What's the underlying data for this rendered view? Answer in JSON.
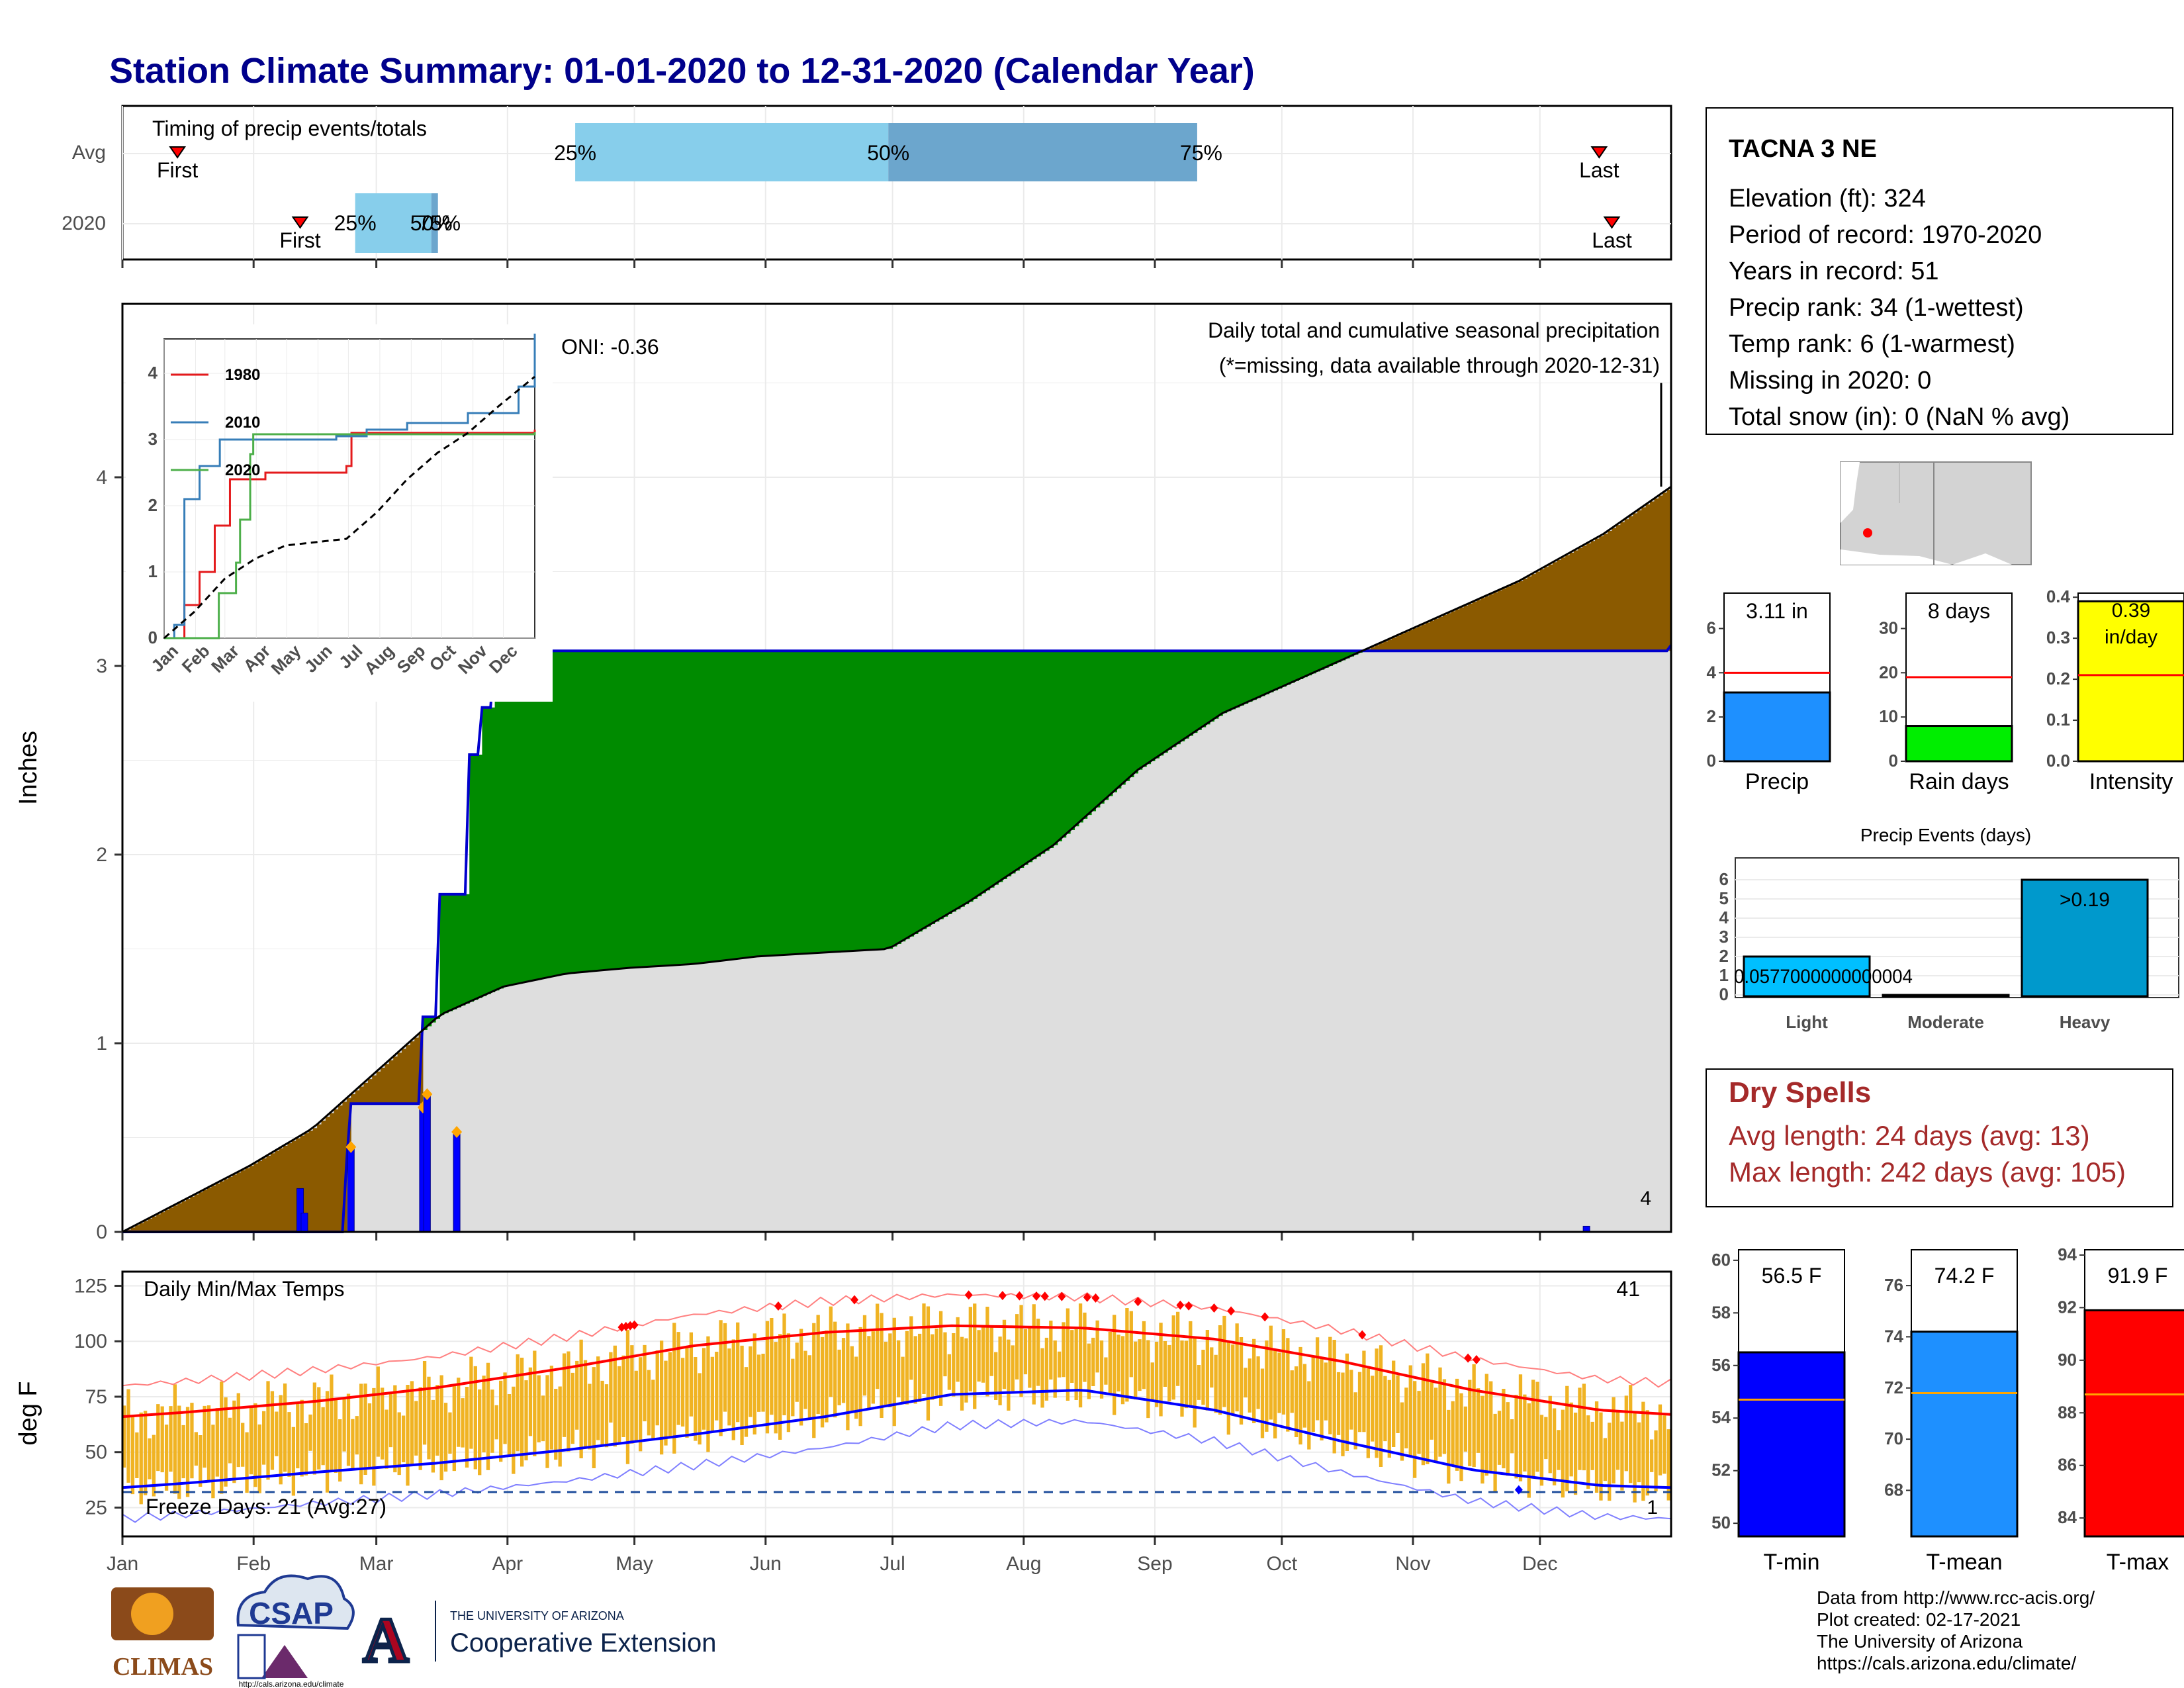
{
  "title": "Station Climate Summary: 01-01-2020 to 12-31-2020 (Calendar Year)",
  "timing": {
    "label": "Timing of precip events/totals",
    "rows": [
      {
        "name": "Avg",
        "first_doy": 13,
        "last_doy": 349,
        "p25": 107,
        "p50": 181,
        "p75": 254,
        "first_label": "First",
        "last_label": "Last",
        "p25_label": "25%",
        "p50_label": "50%",
        "p75_label": "75%"
      },
      {
        "name": "2020",
        "first_doy": 42,
        "last_doy": 352,
        "p25": 55,
        "p50": 73,
        "p75": 74,
        "first_label": "First",
        "last_label": "Last",
        "p25_label": "25%",
        "p50_label": "50%",
        "p75_label": "75%"
      }
    ]
  },
  "precip_panel": {
    "y_axis_label": "Inches",
    "oni": "ONI: -0.36",
    "desc": "Daily total and cumulative seasonal precipitation",
    "missing_note": "(*=missing, data available through 2020-12-31)",
    "count_label": "4",
    "yticks": [
      "0",
      "1",
      "2",
      "3",
      "4"
    ]
  },
  "inset": {
    "legend": [
      "1980",
      "2010",
      "2020"
    ],
    "colors": [
      "#e41a1c",
      "#377eb8",
      "#4daf4a"
    ],
    "yticks": [
      "0",
      "1",
      "2",
      "3",
      "4"
    ],
    "months": [
      "Jan",
      "Feb",
      "Mar",
      "Apr",
      "May",
      "Jun",
      "Jul",
      "Aug",
      "Sep",
      "Oct",
      "Nov",
      "Dec"
    ]
  },
  "temp_panel": {
    "label": "Daily Min/Max Temps",
    "y_axis_label": "deg F",
    "hot_count": "41",
    "freeze_label": "Freeze Days: 21 (Avg:27)",
    "cold_count": "1",
    "yticks": [
      "25",
      "50",
      "75",
      "100",
      "125"
    ]
  },
  "months": [
    "Jan",
    "Feb",
    "Mar",
    "Apr",
    "May",
    "Jun",
    "Jul",
    "Aug",
    "Sep",
    "Oct",
    "Nov",
    "Dec"
  ],
  "station": {
    "name": "TACNA 3 NE",
    "lines": [
      "Elevation (ft): 324",
      "Period of record: 1970-2020",
      "Years in record: 51",
      "Precip rank: 34 (1-wettest)",
      "Temp rank: 6 (1-warmest)",
      "Missing in 2020: 0",
      "Total snow (in): 0 (NaN % avg)"
    ]
  },
  "summary_bars": [
    {
      "label": "Precip",
      "value_label": "3.11 in",
      "value": 3.11,
      "avg": 4.0,
      "ymax": 7.6,
      "yticks": [
        "0",
        "2",
        "4",
        "6"
      ],
      "color": "#1e90ff"
    },
    {
      "label": "Rain days",
      "value_label": "8 days",
      "value": 8,
      "avg": 19,
      "ymax": 38,
      "yticks": [
        "0",
        "10",
        "20",
        "30"
      ],
      "color": "#00ee00"
    },
    {
      "label": "Intensity",
      "value_label": "0.39 in/day",
      "value": 0.39,
      "avg": 0.21,
      "ymax": 0.41,
      "yticks": [
        "0.0",
        "0.1",
        "0.2",
        "0.3",
        "0.4"
      ],
      "color": "#ffff00"
    }
  ],
  "events": {
    "title": "Precip Events (days)",
    "categories": [
      "Light",
      "Moderate",
      "Heavy"
    ],
    "values": [
      2,
      0,
      6
    ],
    "bar_labels": [
      "0.0577000000000004",
      "",
      ">0.19"
    ],
    "yticks": [
      "0",
      "1",
      "2",
      "3",
      "4",
      "5",
      "6"
    ],
    "colors": [
      "#00bfff",
      "#00bfff",
      "#0099cc"
    ]
  },
  "dry_spells": {
    "title": "Dry Spells",
    "avg_line": "Avg length: 24 days (avg: 13)",
    "max_line": "Max length: 242 days (avg: 105)"
  },
  "temp_bars": [
    {
      "label": "T-min",
      "value_label": "56.5 F",
      "value": 56.5,
      "avg": 54.7,
      "ymin": 49.5,
      "ymax": 60.4,
      "yticks": [
        50,
        52,
        54,
        56,
        58,
        60
      ],
      "color": "#0000ff"
    },
    {
      "label": "T-mean",
      "value_label": "74.2 F",
      "value": 74.2,
      "avg": 71.8,
      "ymin": 66.2,
      "ymax": 77.4,
      "yticks": [
        68,
        70,
        72,
        74,
        76
      ],
      "color": "#1e90ff"
    },
    {
      "label": "T-max",
      "value_label": "91.9 F",
      "value": 91.9,
      "avg": 88.7,
      "ymin": 83.3,
      "ymax": 94.2,
      "yticks": [
        84,
        86,
        88,
        90,
        92,
        94
      ],
      "color": "#ff0000"
    }
  ],
  "credits": [
    "Data from http://www.rcc-acis.org/",
    "Plot created: 02-17-2021",
    "The University of Arizona",
    "https://cals.arizona.edu/climate/"
  ],
  "logos": {
    "climas": "CLIMAS",
    "csap": "CSAP",
    "csap_url": "http://cals.arizona.edu/climate",
    "ua_small": "THE UNIVERSITY OF ARIZONA",
    "ua_big": "Cooperative Extension"
  },
  "chart_data": [
    {
      "type": "area",
      "title": "Daily total and cumulative seasonal precipitation",
      "ylabel": "Inches",
      "ylim": [
        0,
        4.9
      ],
      "series": [
        {
          "name": "",
          "x_doy": [
            0,
            30,
            45,
            60,
            75,
            90,
            105,
            120,
            135,
            150,
            165,
            181,
            200,
            220,
            240,
            260,
            275,
            290,
            310,
            330,
            350,
            366
          ],
          "values": [
            0,
            0.35,
            0.55,
            0.85,
            1.15,
            1.3,
            1.37,
            1.4,
            1.42,
            1.46,
            1.48,
            1.5,
            1.75,
            2.05,
            2.45,
            2.75,
            2.9,
            3.05,
            3.25,
            3.45,
            3.7,
            3.95
          ]
        },
        {
          "name": "2020",
          "x_doy": [
            0,
            42,
            53,
            54,
            66,
            71,
            72,
            75,
            82,
            85,
            88,
            346,
            366
          ],
          "values": [
            0,
            0,
            0.38,
            0.68,
            0.68,
            1.14,
            1.14,
            1.79,
            2.53,
            2.78,
            3.08,
            3.08,
            3.11
          ]
        }
      ],
      "daily_precip": [
        {
          "doy": 42,
          "value": 0.23
        },
        {
          "doy": 43,
          "value": 0.1
        },
        {
          "doy": 54,
          "value": 0.45
        },
        {
          "doy": 71,
          "value": 0.66
        },
        {
          "doy": 72,
          "value": 0.73
        },
        {
          "doy": 79,
          "value": 0.53
        },
        {
          "doy": 346,
          "value": 0.03
        }
      ]
    },
    {
      "type": "line",
      "title": "",
      "x_labels": [
        "Jan",
        "Feb",
        "Mar",
        "Apr",
        "May",
        "Jun",
        "Jul",
        "Aug",
        "Sep",
        "Oct",
        "Nov",
        "Dec"
      ],
      "ylim": [
        0,
        4.8
      ],
      "series": [
        {
          "name": "1980",
          "x_doy": [
            0,
            20,
            35,
            50,
            65,
            100,
            180,
            185,
            366
          ],
          "values": [
            0,
            0.5,
            1.0,
            1.7,
            2.4,
            2.5,
            2.6,
            3.1,
            3.15
          ]
        },
        {
          "name": "2010",
          "x_doy": [
            0,
            10,
            20,
            35,
            55,
            170,
            200,
            240,
            300,
            350,
            366
          ],
          "values": [
            0,
            0.2,
            2.1,
            2.6,
            3.0,
            3.05,
            3.15,
            3.25,
            3.4,
            3.8,
            4.6
          ]
        },
        {
          "name": "2020",
          "x_doy": [
            0,
            42,
            54,
            71,
            75,
            85,
            88,
            346,
            366
          ],
          "values": [
            0,
            0,
            0.68,
            1.14,
            1.79,
            2.78,
            3.08,
            3.08,
            3.11
          ]
        },
        {
          "name": "",
          "x_doy": [
            0,
            30,
            60,
            90,
            120,
            150,
            180,
            210,
            240,
            270,
            300,
            330,
            366
          ],
          "values": [
            0,
            0.4,
            0.9,
            1.2,
            1.4,
            1.45,
            1.5,
            1.9,
            2.4,
            2.8,
            3.1,
            3.5,
            3.95
          ]
        }
      ]
    },
    {
      "type": "line",
      "title": "Daily Min/Max Temps",
      "ylabel": "deg F",
      "ylim": [
        12,
        130
      ],
      "x_labels": [
        "Jan",
        "Feb",
        "Mar",
        "Apr",
        "May",
        "Jun",
        "Jul",
        "Aug",
        "Sep",
        "Oct",
        "Nov",
        "Dec"
      ],
      "series": [
        {
          "name": "",
          "x_doy": [
            0,
            15,
            46,
            74,
            105,
            135,
            166,
            196,
            227,
            258,
            288,
            319,
            349,
            366
          ],
          "values": [
            66,
            68,
            73,
            79,
            88,
            98,
            104,
            107,
            106,
            101,
            91,
            78,
            69,
            67
          ]
        },
        {
          "name": "",
          "x_doy": [
            0,
            15,
            46,
            74,
            105,
            135,
            166,
            196,
            227,
            258,
            288,
            319,
            349,
            366
          ],
          "values": [
            34,
            36,
            41,
            45,
            51,
            58,
            66,
            76,
            78,
            69,
            55,
            42,
            35,
            34
          ]
        }
      ],
      "freeze_threshold": 32
    }
  ]
}
